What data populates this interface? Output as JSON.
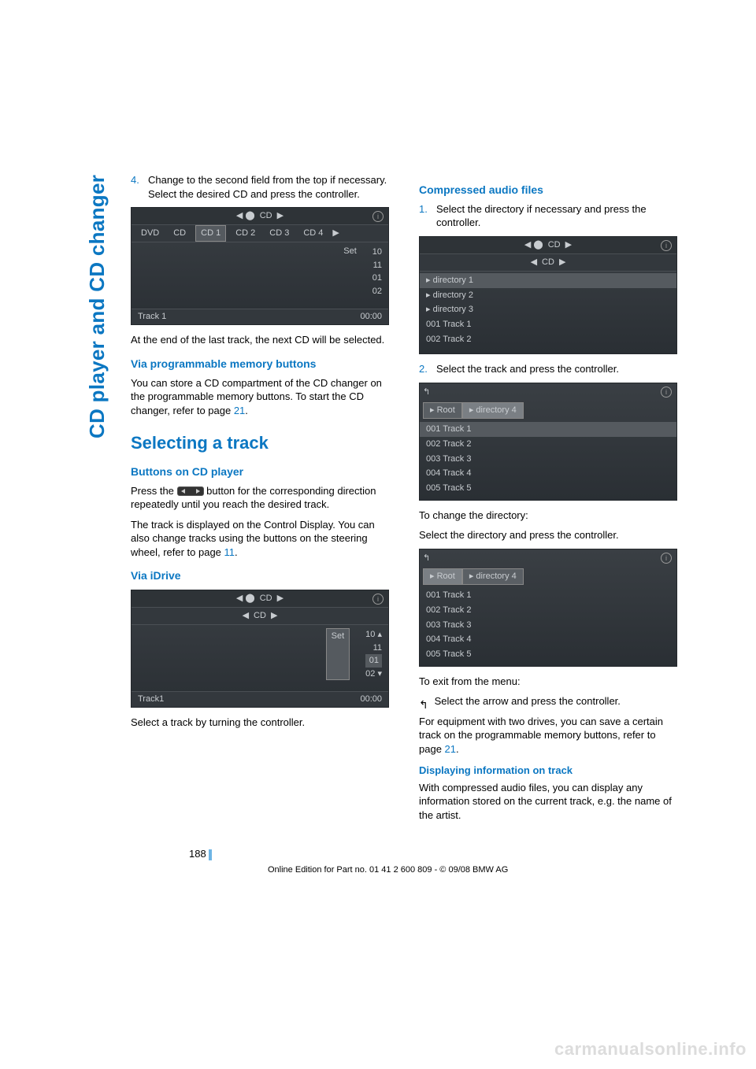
{
  "side_tab": "CD player and CD changer",
  "left": {
    "step4_num": "4.",
    "step4_text": "Change to the second field from the top if necessary. Select the desired CD and press the controller.",
    "screenshot1": {
      "top": "CD",
      "tabs": [
        "DVD",
        "CD",
        "CD 1",
        "CD 2",
        "CD 3",
        "CD 4"
      ],
      "sel_tab": "CD 1",
      "set": "Set",
      "nums": [
        "10",
        "11",
        "01",
        "02"
      ],
      "foot_left": "Track 1",
      "foot_right": "00:00"
    },
    "after_ss1": "At the end of the last track, the next CD will be selected.",
    "h2_prog": "Via programmable memory buttons",
    "prog_text_a": "You can store a CD compartment of the CD changer on the programmable memory buttons. To start the CD changer, refer to page ",
    "prog_ref": "21",
    "prog_text_b": ".",
    "h1_select": "Selecting a track",
    "h2_buttons": "Buttons on CD player",
    "buttons_text_a": "Press the ",
    "buttons_text_b": " button for the corresponding direction repeatedly until you reach the desired track.",
    "buttons_text2_a": "The track is displayed on the Control Display. You can also change tracks using the buttons on the steering wheel, refer to page ",
    "buttons_ref": "11",
    "buttons_text2_b": ".",
    "h2_idrive": "Via iDrive",
    "screenshot2": {
      "top": "CD",
      "sub": "CD",
      "set": "Set",
      "nums": [
        "10",
        "11",
        "01",
        "02"
      ],
      "foot_left": "Track1",
      "foot_right": "00:00"
    },
    "after_ss2": "Select a track by turning the controller."
  },
  "right": {
    "h2_compressed": "Compressed audio files",
    "step1_num": "1.",
    "step1_text": "Select the directory if necessary and press the controller.",
    "screenshot3": {
      "top": "CD",
      "sub": "CD",
      "items": [
        "directory 1",
        "directory 2",
        "directory 3",
        "001 Track 1",
        "002 Track 2"
      ],
      "hi": 0
    },
    "step2_num": "2.",
    "step2_text": "Select the track and press the controller.",
    "screenshot4": {
      "crumbs": [
        "Root",
        "directory 4"
      ],
      "sel": 1,
      "items": [
        "001 Track  1",
        "002 Track 2",
        "003 Track 3",
        "004 Track 4",
        "005 Track 5"
      ],
      "hi": 0
    },
    "change_dir": "To change the directory:",
    "change_dir2": "Select the directory and press the controller.",
    "screenshot5": {
      "crumbs": [
        "Root",
        "directory 4"
      ],
      "sel": 0,
      "items": [
        "001 Track  1",
        "002 Track 2",
        "003 Track 3",
        "004 Track 4",
        "005 Track 5"
      ],
      "hi": -1
    },
    "exit_menu": "To exit from the menu:",
    "exit_menu2": " Select the arrow and press the controller.",
    "equip_a": "For equipment with two drives, you can save a certain track on the programmable memory buttons, refer to page ",
    "equip_ref": "21",
    "equip_b": ".",
    "h3_display": "Displaying information on track",
    "display_text": "With compressed audio files, you can display any information stored on the current track, e.g. the name of the artist."
  },
  "page_number": "188",
  "footer": "Online Edition for Part no. 01 41 2 600 809 - © 09/08 BMW AG",
  "watermark": "carmanualsonline.info"
}
